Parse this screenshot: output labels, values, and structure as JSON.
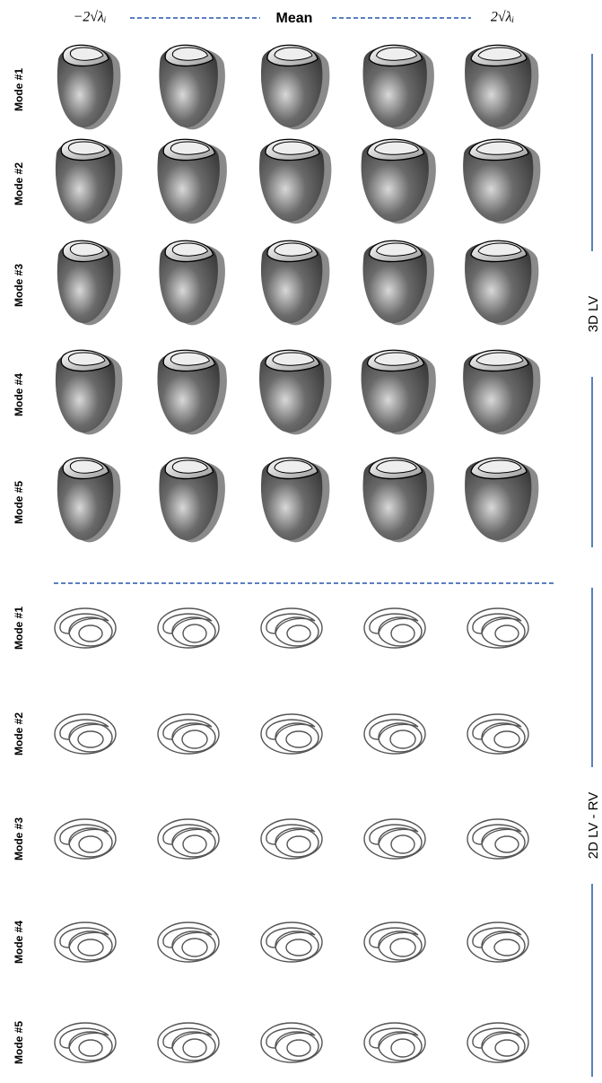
{
  "header": {
    "left": "−2√λᵢ",
    "center": "Mean",
    "right": "2√λᵢ"
  },
  "sections": [
    {
      "label": "3D LV",
      "rows": [
        "Mode #1",
        "Mode #2",
        "Mode #3",
        "Mode #4",
        "Mode #5"
      ]
    },
    {
      "label": "2D LV - RV",
      "rows": [
        "Mode #1",
        "Mode #2",
        "Mode #3",
        "Mode #4",
        "Mode #5"
      ]
    }
  ]
}
